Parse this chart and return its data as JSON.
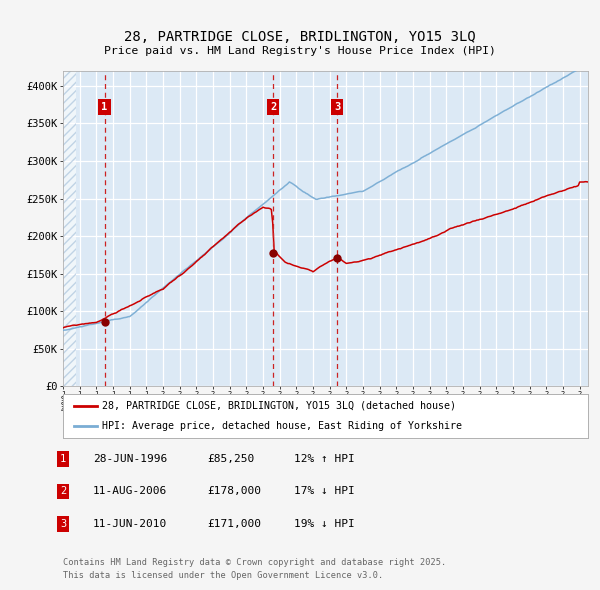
{
  "title_line1": "28, PARTRIDGE CLOSE, BRIDLINGTON, YO15 3LQ",
  "title_line2": "Price paid vs. HM Land Registry's House Price Index (HPI)",
  "legend_red": "28, PARTRIDGE CLOSE, BRIDLINGTON, YO15 3LQ (detached house)",
  "legend_blue": "HPI: Average price, detached house, East Riding of Yorkshire",
  "transactions": [
    {
      "label": "1",
      "date_dec": 1996.49,
      "price": 85250,
      "note": "28-JUN-1996",
      "pct": "12% ↑ HPI"
    },
    {
      "label": "2",
      "date_dec": 2006.61,
      "price": 178000,
      "note": "11-AUG-2006",
      "pct": "17% ↓ HPI"
    },
    {
      "label": "3",
      "date_dec": 2010.44,
      "price": 171000,
      "note": "11-JUN-2010",
      "pct": "19% ↓ HPI"
    }
  ],
  "footer_line1": "Contains HM Land Registry data © Crown copyright and database right 2025.",
  "footer_line2": "This data is licensed under the Open Government Licence v3.0.",
  "xlim": [
    1994.0,
    2025.5
  ],
  "ylim": [
    0,
    420000
  ],
  "yticks": [
    0,
    50000,
    100000,
    150000,
    200000,
    250000,
    300000,
    350000,
    400000
  ],
  "ytick_labels": [
    "£0",
    "£50K",
    "£100K",
    "£150K",
    "£200K",
    "£250K",
    "£300K",
    "£350K",
    "£400K"
  ],
  "bg_color": "#dce9f5",
  "red_color": "#cc0000",
  "blue_color": "#7aadd4",
  "grid_color": "#ffffff",
  "vline_color": "#cc2222",
  "box_color": "#cc0000",
  "marker_color": "#880000",
  "fig_bg": "#f5f5f5"
}
